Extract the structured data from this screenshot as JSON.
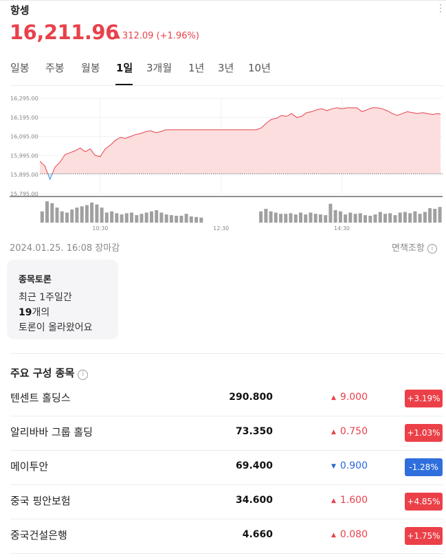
{
  "header": {
    "title": "항셍",
    "price": "16,211.96",
    "change_value": "312.09",
    "change_pct": "(+1.96%)",
    "change_direction": "up",
    "accent_up": "#e8414b",
    "accent_down": "#2b66d9"
  },
  "tabs": [
    {
      "label": "일봉",
      "active": false
    },
    {
      "label": "주봉",
      "active": false
    },
    {
      "label": "월봉",
      "active": false
    },
    {
      "label": "1일",
      "active": true
    },
    {
      "label": "3개월",
      "active": false
    },
    {
      "label": "1년",
      "active": false
    },
    {
      "label": "3년",
      "active": false
    },
    {
      "label": "10년",
      "active": false
    }
  ],
  "chart_data": {
    "type": "area",
    "y_ticks": [
      "16,295.00",
      "16,195.00",
      "16,095.00",
      "15,995.00",
      "15,895.00",
      "15,795.00"
    ],
    "ylim": [
      15795,
      16295
    ],
    "baseline": 15899.87,
    "x_ticks": [
      "10:30",
      "12:30",
      "14:30"
    ],
    "series": [
      {
        "time": [
          "09:30",
          "09:35",
          "09:40",
          "09:45",
          "09:50",
          "09:55",
          "10:00",
          "10:05",
          "10:10",
          "10:15",
          "10:20",
          "10:25",
          "10:30",
          "10:35",
          "10:40",
          "10:45",
          "10:50",
          "10:55",
          "11:00",
          "11:05",
          "11:10",
          "11:15",
          "11:20",
          "11:25",
          "11:30",
          "11:35",
          "11:40",
          "11:45",
          "11:50",
          "11:55",
          "12:00",
          "12:05",
          "12:10",
          "12:15",
          "12:20",
          "12:25",
          "12:30",
          "12:35",
          "12:40",
          "12:45",
          "12:50",
          "12:55",
          "13:00",
          "13:05",
          "13:10",
          "13:15",
          "13:20",
          "13:25",
          "13:30",
          "13:35",
          "13:40",
          "13:45",
          "13:50",
          "13:55",
          "14:00",
          "14:05",
          "14:10",
          "14:15",
          "14:20",
          "14:25",
          "14:30",
          "14:35",
          "14:40",
          "14:45",
          "14:50",
          "14:55",
          "15:00",
          "15:05",
          "15:10",
          "15:15",
          "15:20",
          "15:25",
          "15:30",
          "15:35",
          "15:40",
          "15:45",
          "15:50",
          "15:55",
          "16:00",
          "16:05",
          "16:08"
        ],
        "values": [
          15965,
          15940,
          15870,
          15935,
          15960,
          16000,
          16010,
          16020,
          16035,
          16015,
          16030,
          15995,
          15990,
          16030,
          16050,
          16075,
          16090,
          16085,
          16095,
          16105,
          16110,
          16120,
          16125,
          16115,
          16120,
          16130,
          16130,
          16130,
          16130,
          16130,
          16130,
          16130,
          16130,
          16130,
          16130,
          16130,
          16130,
          16130,
          16130,
          16130,
          16130,
          16130,
          16130,
          16130,
          16140,
          16165,
          16185,
          16190,
          16205,
          16200,
          16215,
          16195,
          16200,
          16220,
          16225,
          16235,
          16240,
          16230,
          16240,
          16245,
          16240,
          16245,
          16245,
          16245,
          16225,
          16235,
          16245,
          16245,
          16240,
          16230,
          16215,
          16205,
          16215,
          16225,
          16220,
          16215,
          16220,
          16215,
          16210,
          16215,
          16212
        ]
      }
    ],
    "volume": [
      18,
      34,
      31,
      24,
      18,
      16,
      21,
      24,
      26,
      28,
      32,
      29,
      24,
      16,
      18,
      15,
      13,
      15,
      16,
      12,
      14,
      16,
      18,
      20,
      16,
      13,
      12,
      11,
      11,
      14,
      10,
      9,
      8,
      0,
      0,
      0,
      0,
      0,
      0,
      0,
      0,
      0,
      0,
      0,
      18,
      22,
      18,
      16,
      14,
      14,
      15,
      13,
      16,
      13,
      16,
      14,
      13,
      12,
      30,
      20,
      18,
      13,
      16,
      14,
      15,
      12,
      11,
      13,
      17,
      14,
      15,
      12,
      16,
      17,
      15,
      18,
      14,
      17,
      23,
      22,
      25
    ]
  },
  "footer": {
    "timestamp": "2024.01.25. 16:08 장마감",
    "disclaimer": "면책조항",
    "info_icon": "ⓘ"
  },
  "discussion": {
    "title": "종목토론",
    "line1": "최근 1주일간",
    "count": "19",
    "count_suffix": "개의",
    "line3": "토론이 올라왔어요"
  },
  "constituents": {
    "title": "주요 구성 종목",
    "items": [
      {
        "name": "텐센트 홀딩스",
        "price": "290.800",
        "change": "9.000",
        "pct": "+3.19%",
        "direction": "up"
      },
      {
        "name": "알리바바 그룹 홀딩",
        "price": "73.350",
        "change": "0.750",
        "pct": "+1.03%",
        "direction": "up"
      },
      {
        "name": "메이투안",
        "price": "69.400",
        "change": "0.900",
        "pct": "-1.28%",
        "direction": "down"
      },
      {
        "name": "중국 핑안보험",
        "price": "34.600",
        "change": "1.600",
        "pct": "+4.85%",
        "direction": "up"
      },
      {
        "name": "중국건설은행",
        "price": "4.660",
        "change": "0.080",
        "pct": "+1.75%",
        "direction": "up"
      }
    ]
  }
}
